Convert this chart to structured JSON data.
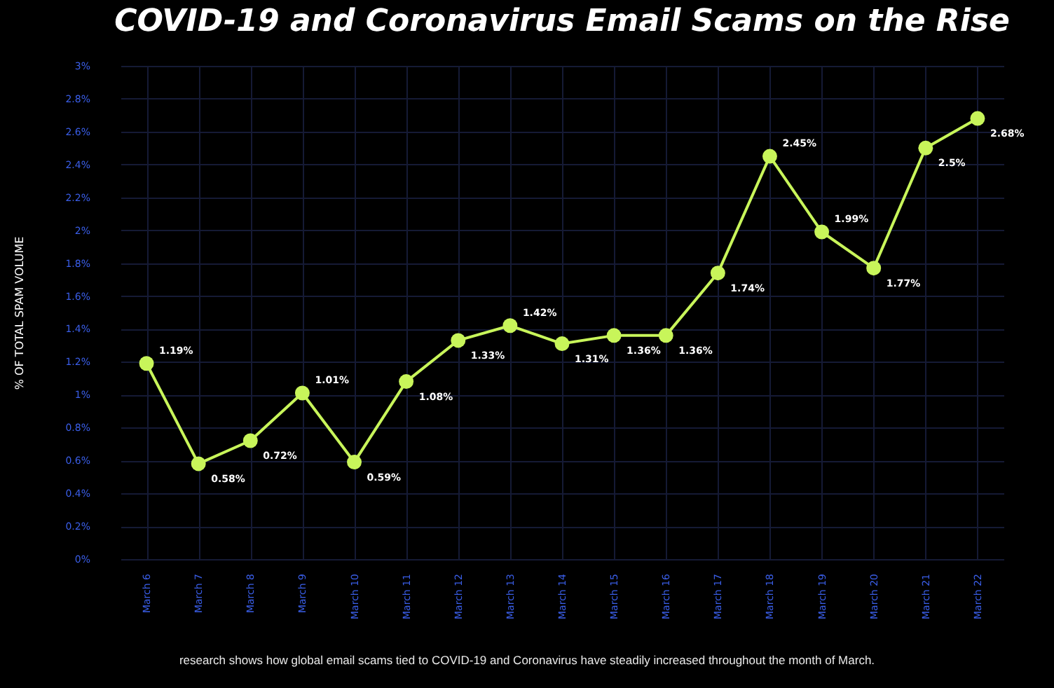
{
  "chart_data": {
    "type": "line",
    "title": "COVID-19 and Coronavirus Email Scams on the Rise",
    "ylabel": "% OF TOTAL SPAM VOLUME",
    "categories": [
      "March 6",
      "March 7",
      "March 8",
      "March 9",
      "March 10",
      "March 11",
      "March 12",
      "March 13",
      "March 14",
      "March 15",
      "March 16",
      "March 17",
      "March 18",
      "March 19",
      "March 20",
      "March 21",
      "March 22"
    ],
    "series": [
      {
        "color": "#c8f55a",
        "values": [
          1.19,
          0.58,
          0.72,
          1.01,
          0.59,
          1.08,
          1.33,
          1.42,
          1.31,
          1.36,
          1.36,
          1.74,
          2.45,
          1.99,
          1.77,
          2.5,
          2.68
        ],
        "value_labels": [
          "1.19%",
          "0.58%",
          "0.72%",
          "1.01%",
          "0.59%",
          "1.08%",
          "1.33%",
          "1.42%",
          "1.31%",
          "1.36%",
          "1.36%",
          "1.74%",
          "2.45%",
          "1.99%",
          "1.77%",
          "2.5%",
          "2.68%"
        ]
      }
    ],
    "ylim": [
      0,
      3
    ],
    "yticks": [
      {
        "value": 0,
        "label": "0%"
      },
      {
        "value": 0.2,
        "label": "0.2%"
      },
      {
        "value": 0.4,
        "label": "0.4%"
      },
      {
        "value": 0.6,
        "label": "0.6%"
      },
      {
        "value": 0.8,
        "label": "0.8%"
      },
      {
        "value": 1,
        "label": "1%"
      },
      {
        "value": 1.2,
        "label": "1.2%"
      },
      {
        "value": 1.4,
        "label": "1.4%"
      },
      {
        "value": 1.6,
        "label": "1.6%"
      },
      {
        "value": 1.8,
        "label": "1.8%"
      },
      {
        "value": 2,
        "label": "2%"
      },
      {
        "value": 2.2,
        "label": "2.2%"
      },
      {
        "value": 2.4,
        "label": "2.4%"
      },
      {
        "value": 2.6,
        "label": "2.6%"
      },
      {
        "value": 2.8,
        "label": "2.8%"
      },
      {
        "value": 3,
        "label": "3%"
      }
    ],
    "grid": true,
    "marker": "circle",
    "line_style": "solid",
    "annotations": [
      "research shows how global email scams tied to COVID-19 and Coronavirus have steadily increased throughout the month of March."
    ]
  }
}
